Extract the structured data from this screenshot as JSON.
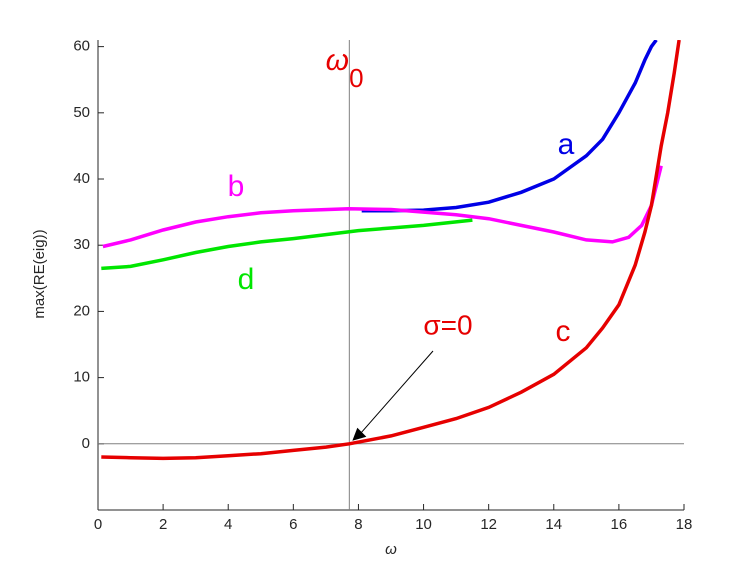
{
  "chart_data": {
    "type": "line",
    "xlabel": "ω",
    "ylabel": "max(RE(eig))",
    "xlim": [
      0,
      18
    ],
    "ylim": [
      -10,
      61
    ],
    "xticks": [
      0,
      2,
      4,
      6,
      8,
      10,
      12,
      14,
      16,
      18
    ],
    "yticks": [
      0,
      10,
      20,
      30,
      40,
      50,
      60
    ],
    "series": [
      {
        "name": "a",
        "color": "#0000e6",
        "x": [
          8.1,
          9,
          10,
          11,
          12,
          13,
          14,
          15,
          15.5,
          16,
          16.5,
          16.8,
          17,
          17.15
        ],
        "values": [
          35.2,
          35.2,
          35.3,
          35.7,
          36.5,
          38,
          40,
          43.5,
          46,
          50,
          54.5,
          58,
          60,
          61
        ]
      },
      {
        "name": "b",
        "color": "#ff00ff",
        "x": [
          0.15,
          1,
          2,
          3,
          4,
          5,
          6,
          7.7,
          9,
          10,
          11,
          12,
          13,
          14,
          15,
          15.8,
          16.3,
          16.7,
          17,
          17.3
        ],
        "values": [
          29.8,
          30.8,
          32.3,
          33.5,
          34.3,
          34.9,
          35.2,
          35.5,
          35.4,
          35,
          34.6,
          34,
          33,
          32,
          30.8,
          30.5,
          31.2,
          33,
          36,
          42
        ]
      },
      {
        "name": "c",
        "color": "#e60000",
        "x": [
          0.1,
          1,
          2,
          3,
          4,
          5,
          6,
          7,
          7.72,
          9,
          10,
          11,
          12,
          13,
          14,
          15,
          15.5,
          16,
          16.5,
          16.8,
          17,
          17.3,
          17.5,
          17.7,
          17.85
        ],
        "values": [
          -2,
          -2.1,
          -2.2,
          -2.1,
          -1.8,
          -1.5,
          -1,
          -0.5,
          0,
          1.2,
          2.5,
          3.8,
          5.5,
          7.8,
          10.5,
          14.5,
          17.5,
          21,
          27,
          32,
          36,
          45,
          50,
          56,
          61
        ]
      },
      {
        "name": "d",
        "color": "#00e600",
        "x": [
          0.1,
          1,
          2,
          3,
          4,
          5,
          6,
          7,
          8,
          9,
          10,
          11.5
        ],
        "values": [
          26.5,
          26.8,
          27.8,
          28.9,
          29.8,
          30.5,
          31,
          31.6,
          32.2,
          32.6,
          33,
          33.8
        ]
      }
    ],
    "annotations": [
      {
        "x": 7.72,
        "label": "ω",
        "subscript": "0"
      },
      {
        "x": 7.72,
        "y": 0,
        "label": "σ=0"
      }
    ]
  }
}
